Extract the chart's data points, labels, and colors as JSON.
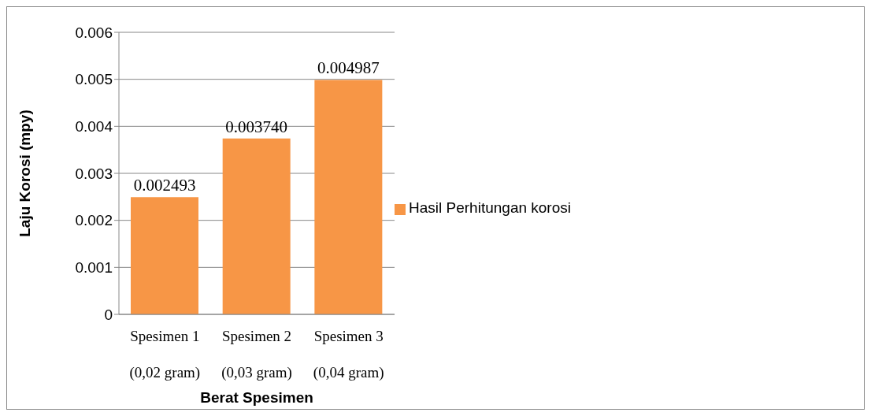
{
  "chart_data": {
    "type": "bar",
    "xlabel": "Berat Spesimen",
    "ylabel": "Laju Korosi (mpy)",
    "categories": [
      "Spesimen 1\n(0,02 gram)",
      "Spesimen 2\n(0,03 gram)",
      "Spesimen 3\n(0,04 gram)"
    ],
    "series": [
      {
        "name": "Hasil Perhitungan korosi",
        "color": "#f79646",
        "values": [
          0.002493,
          0.00374,
          0.004987
        ],
        "value_labels": [
          "0.002493",
          "0.003740",
          "0.004987"
        ]
      }
    ],
    "ylim": [
      0,
      0.006
    ],
    "yticks": [
      0,
      0.001,
      0.002,
      0.003,
      0.004,
      0.005,
      0.006
    ],
    "grid": "y",
    "legend": "right"
  }
}
